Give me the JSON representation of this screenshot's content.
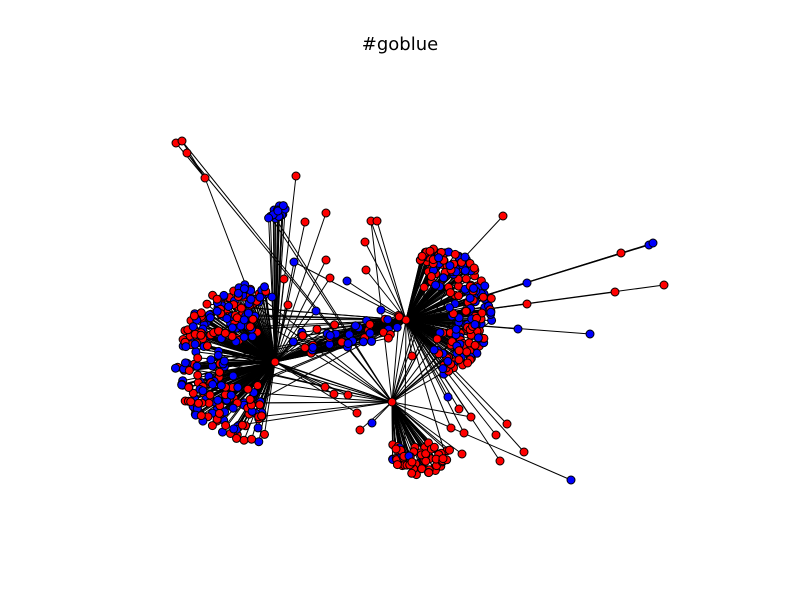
{
  "title": "#goblue",
  "colors": {
    "red": "#ff0000",
    "blue": "#0000ff",
    "edge": "#000000"
  }
}
